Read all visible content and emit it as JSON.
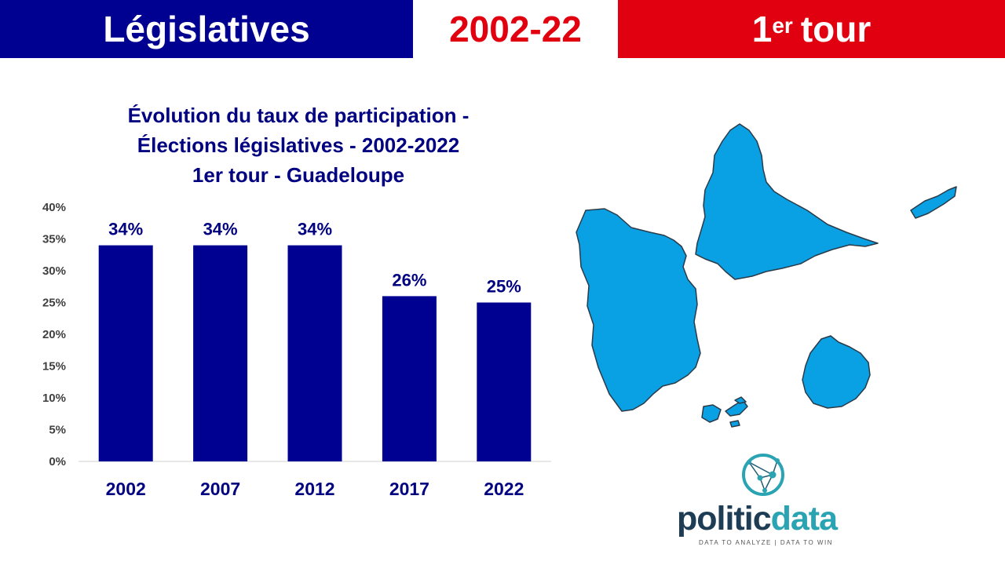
{
  "banner": {
    "left_label": "Législatives",
    "middle_label": "2002-22",
    "right_main": "1",
    "right_sup": "er",
    "right_rest": "tour"
  },
  "colors": {
    "blue": "#000091",
    "red": "#e1000f",
    "bar": "#000091",
    "map_fill": "#0aa1e4",
    "logo_dark": "#1e3c54",
    "logo_teal": "#2aa3b3"
  },
  "chart_data": {
    "type": "bar",
    "title_lines": [
      "Évolution du taux de participation -",
      "Élections législatives - 2002-2022",
      "1er tour - Guadeloupe"
    ],
    "categories": [
      "2002",
      "2007",
      "2012",
      "2017",
      "2022"
    ],
    "values": [
      34,
      34,
      34,
      26,
      25
    ],
    "data_labels": [
      "34%",
      "34%",
      "34%",
      "26%",
      "25%"
    ],
    "y_ticks": [
      "0%",
      "5%",
      "10%",
      "15%",
      "20%",
      "25%",
      "30%",
      "35%",
      "40%"
    ],
    "ylim": [
      0,
      40
    ],
    "unit": "%",
    "grid": false,
    "legend": "none"
  },
  "map": {
    "icon": "guadeloupe-map-icon"
  },
  "logo": {
    "icon": "network-globe-icon",
    "name_part1": "politic",
    "name_part2": "data",
    "tagline": "DATA TO ANALYZE | DATA TO WIN"
  }
}
